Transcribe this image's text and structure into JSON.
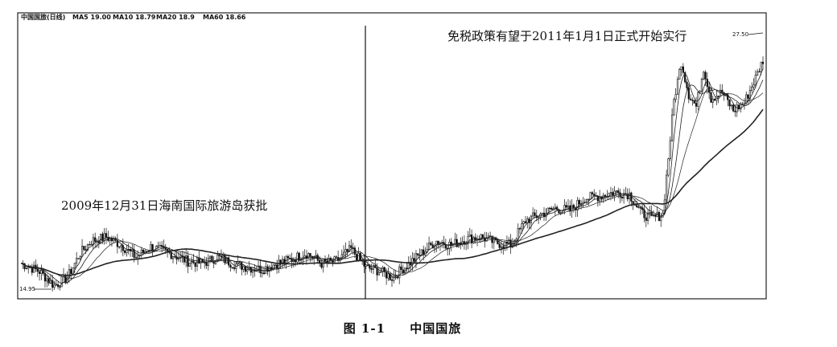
{
  "header": {
    "stock": "中国国旅(日线)",
    "ma5": "MA5 19.00",
    "ma10": "MA10 18.79",
    "ma20": "MA20 18.9",
    "ma60": "MA60 18.66"
  },
  "caption": {
    "figure": "图 1-1",
    "title": "中国国旅"
  },
  "chart_data": {
    "type": "candlestick",
    "price_high_label": "27.50",
    "price_low_label": "14.95",
    "annotations": [
      {
        "text": "2009年12月31日海南国际旅游岛获批"
      },
      {
        "text": "免税政策有望于2011年1月1日正式开始实行"
      }
    ],
    "series": [
      {
        "name": "MA5"
      },
      {
        "name": "MA10"
      },
      {
        "name": "MA20"
      },
      {
        "name": "MA60"
      }
    ],
    "ylim": [
      14.95,
      27.5
    ],
    "close_path": [
      [
        0,
        16.3
      ],
      [
        10,
        15.9
      ],
      [
        18,
        15.2
      ],
      [
        25,
        15.6
      ],
      [
        32,
        16.8
      ],
      [
        38,
        17.4
      ],
      [
        46,
        17.6
      ],
      [
        54,
        17.2
      ],
      [
        62,
        16.6
      ],
      [
        70,
        17.1
      ],
      [
        80,
        16.8
      ],
      [
        90,
        16.4
      ],
      [
        98,
        16.3
      ],
      [
        106,
        16.6
      ],
      [
        114,
        16.3
      ],
      [
        122,
        16.1
      ],
      [
        130,
        16.0
      ],
      [
        138,
        16.3
      ],
      [
        146,
        16.5
      ],
      [
        154,
        16.8
      ],
      [
        162,
        16.3
      ],
      [
        170,
        16.4
      ],
      [
        178,
        17.0
      ],
      [
        186,
        16.1
      ],
      [
        194,
        15.9
      ],
      [
        200,
        15.6
      ],
      [
        208,
        16.2
      ],
      [
        216,
        16.8
      ],
      [
        224,
        17.4
      ],
      [
        232,
        17.2
      ],
      [
        240,
        17.5
      ],
      [
        248,
        17.6
      ],
      [
        256,
        17.3
      ],
      [
        264,
        17.2
      ],
      [
        272,
        18.4
      ],
      [
        280,
        18.7
      ],
      [
        288,
        19.0
      ],
      [
        296,
        18.9
      ],
      [
        304,
        19.5
      ],
      [
        312,
        19.6
      ],
      [
        320,
        19.8
      ],
      [
        328,
        19.7
      ],
      [
        334,
        18.8
      ],
      [
        340,
        18.5
      ],
      [
        346,
        18.7
      ],
      [
        352,
        24.3
      ],
      [
        356,
        26.2
      ],
      [
        360,
        24.6
      ],
      [
        364,
        24.0
      ],
      [
        368,
        25.9
      ],
      [
        372,
        24.4
      ],
      [
        378,
        24.7
      ],
      [
        384,
        23.8
      ],
      [
        390,
        24.2
      ],
      [
        396,
        25.4
      ],
      [
        400,
        26.3
      ]
    ]
  }
}
